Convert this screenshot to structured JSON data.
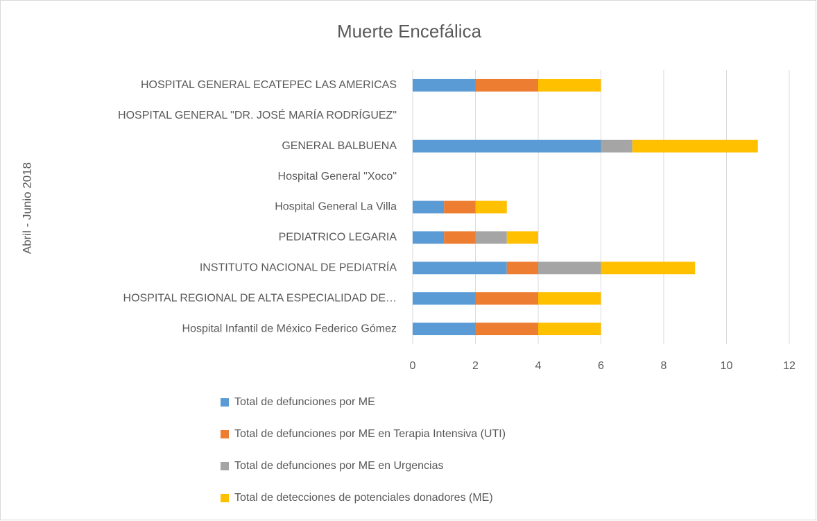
{
  "chart_data": {
    "type": "bar",
    "orientation": "horizontal",
    "stacked": true,
    "title": "Muerte Encefálica",
    "y_axis_label": "Abril - Junio 2018",
    "categories": [
      "HOSPITAL GENERAL ECATEPEC LAS AMERICAS",
      "HOSPITAL GENERAL \"DR. JOSÉ MARÍA RODRÍGUEZ\"",
      "GENERAL BALBUENA",
      "Hospital General \"Xoco\"",
      "Hospital General La Villa",
      "PEDIATRICO LEGARIA",
      "INSTITUTO NACIONAL DE PEDIATRÍA",
      "HOSPITAL REGIONAL DE ALTA ESPECIALIDAD DE…",
      "Hospital Infantil de México Federico Gómez"
    ],
    "series": [
      {
        "name": "Total de defunciones por ME",
        "color": "#5b9bd5",
        "values": [
          2,
          0,
          6,
          0,
          1,
          1,
          3,
          2,
          2
        ]
      },
      {
        "name": "Total de defunciones por ME en Terapia Intensiva (UTI)",
        "color": "#ed7d31",
        "values": [
          2,
          0,
          0,
          0,
          1,
          1,
          1,
          2,
          2
        ]
      },
      {
        "name": "Total de defunciones por ME en Urgencias",
        "color": "#a5a5a5",
        "values": [
          0,
          0,
          1,
          0,
          0,
          1,
          2,
          0,
          0
        ]
      },
      {
        "name": "Total de detecciones de potenciales donadores (ME)",
        "color": "#ffc000",
        "values": [
          2,
          0,
          4,
          0,
          1,
          1,
          3,
          2,
          2
        ]
      }
    ],
    "xlim": [
      0,
      12
    ],
    "xticks": [
      0,
      2,
      4,
      6,
      8,
      10,
      12
    ],
    "grid": true,
    "legend": "bottom"
  }
}
